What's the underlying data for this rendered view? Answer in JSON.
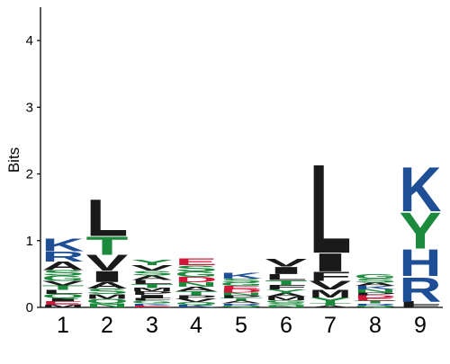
{
  "chart_data": {
    "type": "sequence-logo",
    "title": "",
    "xlabel": "",
    "ylabel": "Bits",
    "ylim": [
      0,
      4.5
    ],
    "y_ticks": [
      "0",
      "1",
      "2",
      "3",
      "4"
    ],
    "positions": [
      "1",
      "2",
      "3",
      "4",
      "5",
      "6",
      "7",
      "8",
      "9"
    ],
    "colors": {
      "blue": "#1d4e96",
      "black": "#1a1a1a",
      "green": "#1b8a3c",
      "red": "#d1173a"
    },
    "columns": [
      {
        "position": "1",
        "letters": [
          {
            "letter": "K",
            "bits": 0.2,
            "color": "blue"
          },
          {
            "letter": "R",
            "bits": 0.15,
            "color": "blue"
          },
          {
            "letter": "A",
            "bits": 0.13,
            "color": "black"
          },
          {
            "letter": "G",
            "bits": 0.08,
            "color": "green"
          },
          {
            "letter": "S",
            "bits": 0.08,
            "color": "green"
          },
          {
            "letter": "T",
            "bits": 0.07,
            "color": "green"
          },
          {
            "letter": "V",
            "bits": 0.07,
            "color": "black"
          },
          {
            "letter": "Q",
            "bits": 0.06,
            "color": "green"
          },
          {
            "letter": "L",
            "bits": 0.06,
            "color": "black"
          },
          {
            "letter": "E",
            "bits": 0.05,
            "color": "red"
          },
          {
            "letter": "I",
            "bits": 0.05,
            "color": "black"
          },
          {
            "letter": "M",
            "bits": 0.04,
            "color": "black"
          }
        ]
      },
      {
        "position": "2",
        "letters": [
          {
            "letter": "L",
            "bits": 0.57,
            "color": "black"
          },
          {
            "letter": "T",
            "bits": 0.28,
            "color": "green"
          },
          {
            "letter": "V",
            "bits": 0.24,
            "color": "black"
          },
          {
            "letter": "I",
            "bits": 0.17,
            "color": "black"
          },
          {
            "letter": "A",
            "bits": 0.1,
            "color": "black"
          },
          {
            "letter": "S",
            "bits": 0.08,
            "color": "green"
          },
          {
            "letter": "Q",
            "bits": 0.07,
            "color": "green"
          },
          {
            "letter": "N",
            "bits": 0.06,
            "color": "green"
          },
          {
            "letter": "M",
            "bits": 0.07,
            "color": "black"
          }
        ]
      },
      {
        "position": "3",
        "letters": [
          {
            "letter": "V",
            "bits": 0.08,
            "color": "black"
          },
          {
            "letter": "Y",
            "bits": 0.08,
            "color": "green"
          },
          {
            "letter": "A",
            "bits": 0.07,
            "color": "black"
          },
          {
            "letter": "S",
            "bits": 0.07,
            "color": "green"
          },
          {
            "letter": "T",
            "bits": 0.06,
            "color": "green"
          },
          {
            "letter": "L",
            "bits": 0.06,
            "color": "black"
          },
          {
            "letter": "I",
            "bits": 0.05,
            "color": "black"
          },
          {
            "letter": "P",
            "bits": 0.05,
            "color": "black"
          },
          {
            "letter": "M",
            "bits": 0.05,
            "color": "black"
          },
          {
            "letter": "G",
            "bits": 0.04,
            "color": "green"
          },
          {
            "letter": "F",
            "bits": 0.04,
            "color": "black"
          },
          {
            "letter": "E",
            "bits": 0.03,
            "color": "red"
          },
          {
            "letter": "K",
            "bits": 0.03,
            "color": "blue"
          }
        ]
      },
      {
        "position": "4",
        "letters": [
          {
            "letter": "E",
            "bits": 0.11,
            "color": "red"
          },
          {
            "letter": "D",
            "bits": 0.08,
            "color": "red"
          },
          {
            "letter": "S",
            "bits": 0.09,
            "color": "green"
          },
          {
            "letter": "G",
            "bits": 0.08,
            "color": "green"
          },
          {
            "letter": "A",
            "bits": 0.07,
            "color": "black"
          },
          {
            "letter": "N",
            "bits": 0.07,
            "color": "green"
          },
          {
            "letter": "T",
            "bits": 0.06,
            "color": "green"
          },
          {
            "letter": "V",
            "bits": 0.05,
            "color": "black"
          },
          {
            "letter": "P",
            "bits": 0.05,
            "color": "black"
          },
          {
            "letter": "K",
            "bits": 0.04,
            "color": "blue"
          },
          {
            "letter": "Q",
            "bits": 0.04,
            "color": "green"
          }
        ]
      },
      {
        "position": "5",
        "letters": [
          {
            "letter": "K",
            "bits": 0.09,
            "color": "blue"
          },
          {
            "letter": "S",
            "bits": 0.06,
            "color": "green"
          },
          {
            "letter": "D",
            "bits": 0.05,
            "color": "red"
          },
          {
            "letter": "E",
            "bits": 0.05,
            "color": "red"
          },
          {
            "letter": "G",
            "bits": 0.05,
            "color": "green"
          },
          {
            "letter": "A",
            "bits": 0.04,
            "color": "black"
          },
          {
            "letter": "T",
            "bits": 0.04,
            "color": "green"
          },
          {
            "letter": "P",
            "bits": 0.04,
            "color": "black"
          },
          {
            "letter": "N",
            "bits": 0.04,
            "color": "green"
          },
          {
            "letter": "Q",
            "bits": 0.03,
            "color": "green"
          },
          {
            "letter": "R",
            "bits": 0.03,
            "color": "blue"
          }
        ]
      },
      {
        "position": "6",
        "letters": [
          {
            "letter": "I",
            "bits": 0.11,
            "color": "black"
          },
          {
            "letter": "V",
            "bits": 0.12,
            "color": "black"
          },
          {
            "letter": "L",
            "bits": 0.09,
            "color": "black"
          },
          {
            "letter": "F",
            "bits": 0.07,
            "color": "black"
          },
          {
            "letter": "T",
            "bits": 0.07,
            "color": "green"
          },
          {
            "letter": "Y",
            "bits": 0.06,
            "color": "green"
          },
          {
            "letter": "M",
            "bits": 0.05,
            "color": "black"
          },
          {
            "letter": "A",
            "bits": 0.05,
            "color": "black"
          },
          {
            "letter": "S",
            "bits": 0.04,
            "color": "green"
          },
          {
            "letter": "G",
            "bits": 0.04,
            "color": "green"
          },
          {
            "letter": "N",
            "bits": 0.03,
            "color": "green"
          }
        ]
      },
      {
        "position": "7",
        "letters": [
          {
            "letter": "L",
            "bits": 1.37,
            "color": "black"
          },
          {
            "letter": "I",
            "bits": 0.28,
            "color": "black"
          },
          {
            "letter": "F",
            "bits": 0.14,
            "color": "black"
          },
          {
            "letter": "V",
            "bits": 0.13,
            "color": "black"
          },
          {
            "letter": "M",
            "bits": 0.12,
            "color": "black"
          },
          {
            "letter": "Y",
            "bits": 0.08,
            "color": "green"
          },
          {
            "letter": "T",
            "bits": 0.04,
            "color": "green"
          },
          {
            "letter": "A",
            "bits": 0.03,
            "color": "black"
          }
        ]
      },
      {
        "position": "8",
        "letters": [
          {
            "letter": "G",
            "bits": 0.07,
            "color": "green"
          },
          {
            "letter": "S",
            "bits": 0.06,
            "color": "green"
          },
          {
            "letter": "N",
            "bits": 0.05,
            "color": "green"
          },
          {
            "letter": "K",
            "bits": 0.05,
            "color": "blue"
          },
          {
            "letter": "A",
            "bits": 0.05,
            "color": "black"
          },
          {
            "letter": "T",
            "bits": 0.04,
            "color": "green"
          },
          {
            "letter": "E",
            "bits": 0.04,
            "color": "red"
          },
          {
            "letter": "D",
            "bits": 0.04,
            "color": "red"
          },
          {
            "letter": "P",
            "bits": 0.04,
            "color": "black"
          },
          {
            "letter": "Q",
            "bits": 0.03,
            "color": "green"
          },
          {
            "letter": "R",
            "bits": 0.03,
            "color": "blue"
          }
        ]
      },
      {
        "position": "9",
        "letters": [
          {
            "letter": "K",
            "bits": 0.68,
            "color": "blue"
          },
          {
            "letter": "Y",
            "bits": 0.56,
            "color": "green"
          },
          {
            "letter": "H",
            "bits": 0.41,
            "color": "blue"
          },
          {
            "letter": "R",
            "bits": 0.38,
            "color": "blue"
          },
          {
            "letter": "L",
            "bits": 0.05,
            "color": "black"
          },
          {
            "letter": "F",
            "bits": 0.04,
            "color": "black"
          }
        ]
      }
    ]
  }
}
